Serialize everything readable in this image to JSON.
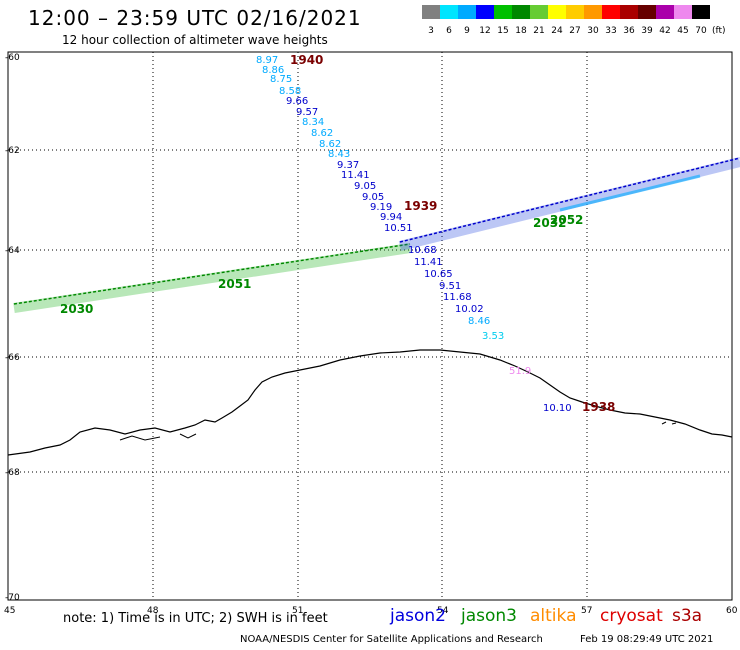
{
  "header": {
    "title": "12:00 – 23:59 UTC 02/16/2021",
    "subtitle": "12 hour collection of altimeter wave heights"
  },
  "colorbar": {
    "labels": [
      "3",
      "6",
      "9",
      "12",
      "15",
      "18",
      "21",
      "24",
      "27",
      "30",
      "33",
      "36",
      "39",
      "42",
      "45",
      "70"
    ],
    "unit": "(ft)",
    "colors": [
      "#808080",
      "#00e5ff",
      "#00aaff",
      "#0000ff",
      "#00c000",
      "#008800",
      "#66cc33",
      "#ffff00",
      "#ffcc00",
      "#ff9900",
      "#ff0000",
      "#aa0000",
      "#660000",
      "#aa00aa",
      "#ee88ee",
      "#000000"
    ]
  },
  "map": {
    "lat_labels": [
      "-60",
      "-62",
      "-64",
      "-66",
      "-68",
      "-70"
    ],
    "lon_labels": [
      "45",
      "48",
      "51",
      "54",
      "57",
      "60"
    ],
    "pass_labels": [
      {
        "text": "1940",
        "color": "#7a0000"
      },
      {
        "text": "1939",
        "color": "#7a0000"
      },
      {
        "text": "1938",
        "color": "#7a0000"
      },
      {
        "text": "2030",
        "color": "#008800"
      },
      {
        "text": "2051",
        "color": "#008800"
      },
      {
        "text": "2032",
        "color": "#008800"
      },
      {
        "text": "2052",
        "color": "#008800"
      }
    ],
    "values": [
      {
        "text": "8.97",
        "color": "#00aaff"
      },
      {
        "text": "8.86",
        "color": "#00aaff"
      },
      {
        "text": "8.75",
        "color": "#00aaff"
      },
      {
        "text": "8.58",
        "color": "#00aaff"
      },
      {
        "text": "9.66",
        "color": "#0000cc"
      },
      {
        "text": "9.57",
        "color": "#0000cc"
      },
      {
        "text": "8.34",
        "color": "#00aaff"
      },
      {
        "text": "8.62",
        "color": "#00aaff"
      },
      {
        "text": "8.62",
        "color": "#00aaff"
      },
      {
        "text": "8.43",
        "color": "#00aaff"
      },
      {
        "text": "9.37",
        "color": "#0000cc"
      },
      {
        "text": "11.41",
        "color": "#0000cc"
      },
      {
        "text": "9.05",
        "color": "#0000cc"
      },
      {
        "text": "9.05",
        "color": "#0000cc"
      },
      {
        "text": "9.19",
        "color": "#0000cc"
      },
      {
        "text": "9.94",
        "color": "#0000cc"
      },
      {
        "text": "10.51",
        "color": "#0000cc"
      },
      {
        "text": "10.68",
        "color": "#0000cc"
      },
      {
        "text": "11.41",
        "color": "#0000cc"
      },
      {
        "text": "10.65",
        "color": "#0000cc"
      },
      {
        "text": "9.51",
        "color": "#0000cc"
      },
      {
        "text": "11.68",
        "color": "#0000cc"
      },
      {
        "text": "10.02",
        "color": "#0000cc"
      },
      {
        "text": "8.46",
        "color": "#00aaff"
      },
      {
        "text": "3.53",
        "color": "#00ccee"
      },
      {
        "text": "51.9",
        "color": "#ee88ee"
      },
      {
        "text": "10.10",
        "color": "#0000cc"
      }
    ]
  },
  "footer": {
    "note": "note:  1) Time is in UTC;  2) SWH is in feet",
    "missions": [
      {
        "name": "jason2",
        "color": "#0000dd"
      },
      {
        "name": "jason3",
        "color": "#008800"
      },
      {
        "name": "altika",
        "color": "#ff8c00"
      },
      {
        "name": "cryosat",
        "color": "#dd0000"
      },
      {
        "name": "s3a",
        "color": "#aa0000"
      }
    ],
    "credit": "NOAA/NESDIS Center for Satellite Applications and Research",
    "timestamp": "Feb 19 08:29:49 UTC 2021"
  }
}
